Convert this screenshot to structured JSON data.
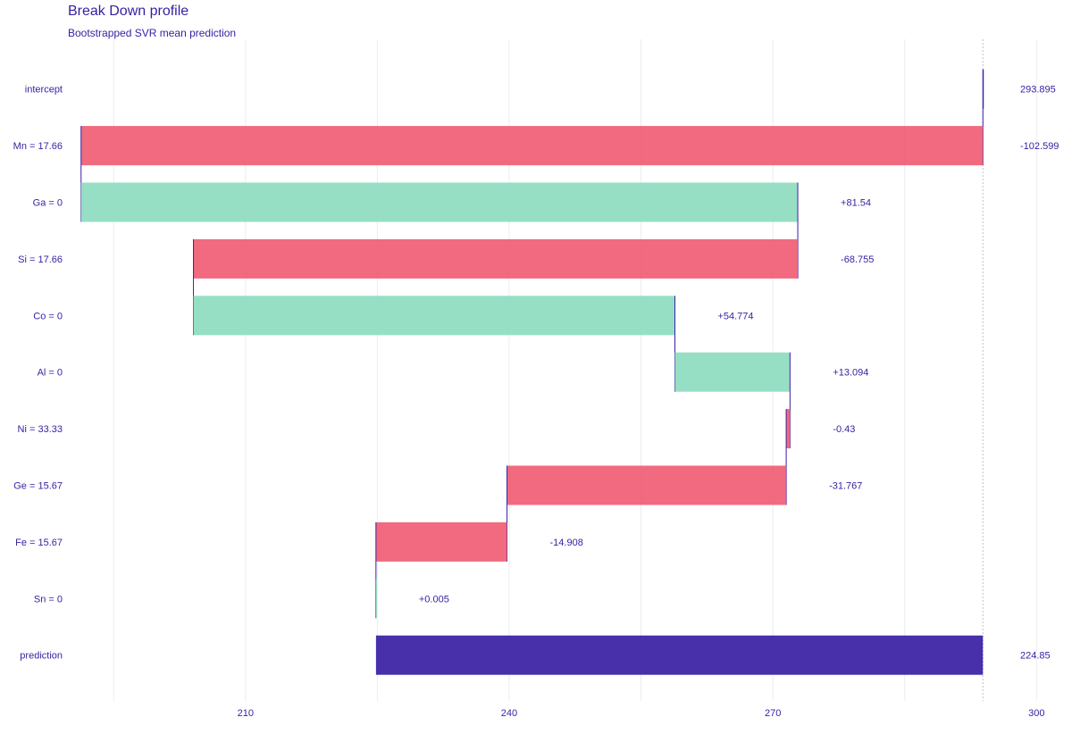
{
  "chart_data": {
    "type": "bar",
    "subtype": "waterfall",
    "title": "Break Down profile",
    "subtitle": "Bootstrapped SVR mean prediction",
    "xlabel": "",
    "ylabel": "",
    "xlim": [
      190,
      302
    ],
    "xticks": [
      210,
      240,
      270,
      300
    ],
    "grid": true,
    "legend": "none",
    "colors": {
      "positive": "#8bdcbe",
      "negative": "#f05a71",
      "prediction": "#371ea3",
      "text": "#371ea3",
      "connector": "#371ea3",
      "baseline": "#c0c0c8"
    },
    "intercept_value": 293.895,
    "rows": [
      {
        "label": "intercept",
        "value": 293.895,
        "display": "293.895",
        "kind": "intercept"
      },
      {
        "label": "Mn = 17.66",
        "value": -102.599,
        "display": "-102.599",
        "kind": "negative"
      },
      {
        "label": "Ga = 0",
        "value": 81.54,
        "display": "+81.54",
        "kind": "positive"
      },
      {
        "label": "Si = 17.66",
        "value": -68.755,
        "display": "-68.755",
        "kind": "negative"
      },
      {
        "label": "Co = 0",
        "value": 54.774,
        "display": "+54.774",
        "kind": "positive"
      },
      {
        "label": "Al = 0",
        "value": 13.094,
        "display": "+13.094",
        "kind": "positive"
      },
      {
        "label": "Ni = 33.33",
        "value": -0.43,
        "display": "-0.43",
        "kind": "negative"
      },
      {
        "label": "Ge = 15.67",
        "value": -31.767,
        "display": "-31.767",
        "kind": "negative"
      },
      {
        "label": "Fe = 15.67",
        "value": -14.908,
        "display": "-14.908",
        "kind": "negative"
      },
      {
        "label": "Sn = 0",
        "value": 0.005,
        "display": "+0.005",
        "kind": "positive"
      },
      {
        "label": "prediction",
        "value": 224.85,
        "display": "224.85",
        "kind": "prediction"
      }
    ]
  }
}
